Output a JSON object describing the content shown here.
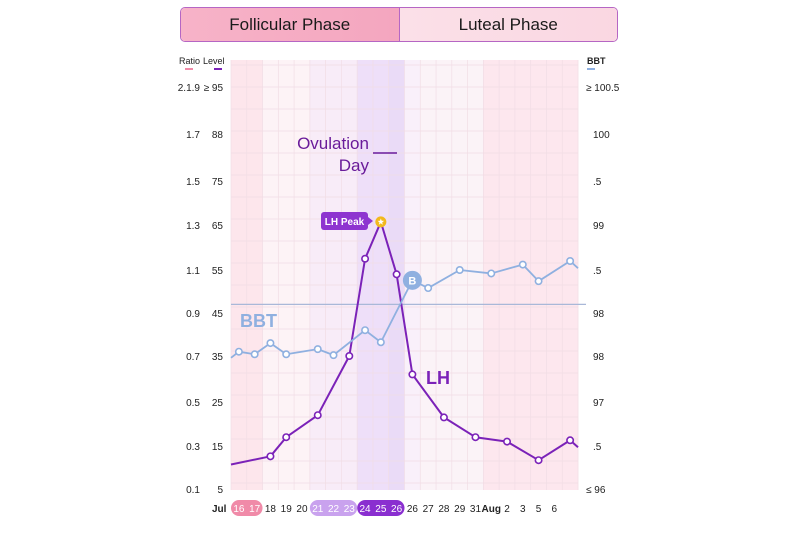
{
  "header": {
    "tabs": [
      {
        "label": "Follicular Phase"
      },
      {
        "label": "Luteal Phase"
      }
    ]
  },
  "chart_data": {
    "type": "line",
    "left_axis": {
      "ratio_label": "Ratio",
      "level_label": "Level",
      "ratio_ticks": [
        "0.1",
        "0.3",
        "0.5",
        "0.7",
        "0.9",
        "1.1",
        "1.3",
        "1.5",
        "1.7",
        "2.1.9"
      ],
      "level_ticks": [
        "5",
        "15",
        "25",
        "35",
        "45",
        "55",
        "65",
        "75",
        "88",
        "≥ 95"
      ],
      "level_values": [
        5,
        15,
        25,
        35,
        45,
        55,
        65,
        75,
        88,
        95
      ]
    },
    "right_axis": {
      "label": "BBT",
      "ticks": [
        "≤ 96",
        ".5",
        "97",
        "98",
        "98",
        ".5",
        "99",
        ".5",
        "100",
        "≥ 100.5"
      ],
      "values": [
        96,
        96.5,
        97,
        97.5,
        98,
        98.5,
        99,
        99.5,
        100,
        100.5
      ]
    },
    "x_axis": {
      "month_start": "Jul",
      "categories": [
        "16",
        "17",
        "18",
        "19",
        "20",
        "21",
        "22",
        "23",
        "24",
        "25",
        "26",
        "26",
        "27",
        "28",
        "29",
        "31",
        "Aug",
        "2",
        "3",
        "5",
        "6",
        ""
      ],
      "highlight_groups": [
        {
          "labels": [
            0,
            1
          ],
          "color": "#f08aa8"
        },
        {
          "labels": [
            5,
            6,
            7
          ],
          "color": "#c9a2ee"
        },
        {
          "labels": [
            8,
            9,
            10
          ],
          "color": "#8a2fd0"
        }
      ]
    },
    "series": [
      {
        "name": "LH",
        "axis": "level",
        "color": "#7b22b8",
        "values": [
          null,
          null,
          12.6,
          17,
          null,
          22,
          null,
          35,
          57.5,
          65.7,
          54,
          31,
          null,
          21.5,
          null,
          17,
          null,
          16,
          null,
          11.7,
          null,
          16.3
        ],
        "edge_values": [
          10.7,
          14.7
        ]
      },
      {
        "name": "BBT",
        "axis": "bbt",
        "color": "#8fb0e0",
        "values": [
          97.55,
          97.52,
          97.65,
          97.52,
          null,
          97.58,
          97.51,
          null,
          97.8,
          97.66,
          null,
          98.38,
          98.29,
          null,
          98.5,
          null,
          98.46,
          null,
          98.56,
          98.37,
          null,
          98.6
        ],
        "edge_values": [
          97.48,
          98.52
        ]
      }
    ],
    "coverline_bbt": 98.1,
    "annotations": {
      "ovulation_line1": "Ovulation",
      "ovulation_line2": "Day",
      "lh_peak": "LH Peak",
      "bbt_label": "BBT",
      "lh_label": "LH",
      "bbt_badge": "B"
    },
    "colors": {
      "pink": "#f4a6bf",
      "purple": "#7b22b8",
      "blue": "#8fb0e0",
      "badge": "#8e35d0",
      "star": "#f2b91c"
    },
    "grid": true
  }
}
